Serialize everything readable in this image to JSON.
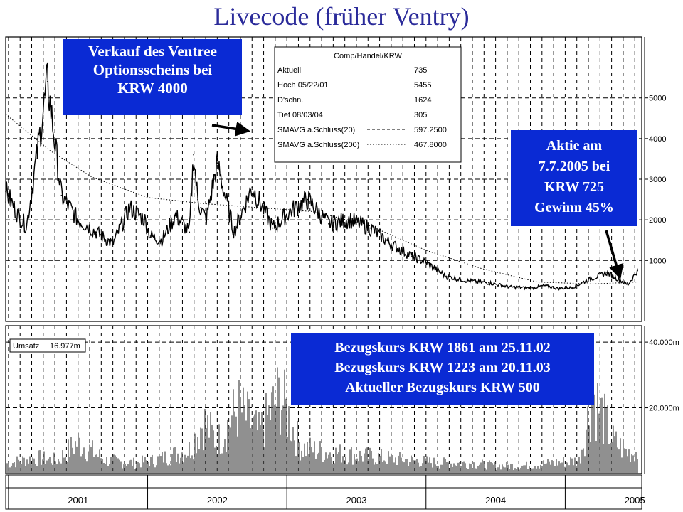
{
  "title": "Livecode (früher Ventry)",
  "info_box": {
    "header": "Comp/Handel/KRW",
    "rows": [
      {
        "label": "Aktuell",
        "value": "735"
      },
      {
        "label": "Hoch  05/22/01",
        "value": "5455"
      },
      {
        "label": "D'schn.",
        "value": "1624"
      },
      {
        "label": "Tief  08/03/04",
        "value": "305"
      },
      {
        "label": "SMAVG a.Schluss(20)",
        "value": "597.2500"
      },
      {
        "label": "SMAVG a.Schluss(200)",
        "value": "467.8000"
      }
    ]
  },
  "volume_box": {
    "label": "Umsatz",
    "value": "16.977m"
  },
  "callouts": {
    "sale": [
      "Verkauf des Ventree",
      "Optionsscheins bei",
      "KRW 4000"
    ],
    "stock": [
      "Aktie am",
      "7.7.2005 bei",
      "KRW 725",
      "Gewinn 45%"
    ],
    "strike": [
      "Bezugskurs KRW 1861 am 25.11.02",
      "Bezugskurs KRW 1223 am 20.11.03",
      "Aktueller Bezugskurs KRW 500"
    ]
  },
  "colors": {
    "title": "#2b2b9a",
    "callout_bg": "#0a2ad4",
    "price_line": "#000000",
    "grid": "#000000"
  },
  "chart_data": [
    {
      "type": "line",
      "series": [
        {
          "x": [
            2000.98,
            2001.08,
            2001.13,
            2001.2,
            2001.28,
            2001.38,
            2001.5,
            2001.63,
            2001.75,
            2001.87,
            2001.98,
            2002.02,
            2002.1,
            2002.2,
            2002.3,
            2002.33,
            2002.36,
            2002.38,
            2002.42,
            2002.5,
            2002.62,
            2002.75,
            2002.9,
            2003.02,
            2003.15,
            2003.3,
            2003.45,
            2003.6,
            2003.75,
            2003.9,
            2004.0,
            2004.15,
            2004.3,
            2004.45,
            2004.6,
            2004.75,
            2004.85,
            2004.95,
            2005.05,
            2005.15,
            2005.3,
            2005.45,
            2005.52
          ],
          "y": [
            2700,
            2050,
            1850,
            3500,
            5400,
            2600,
            2000,
            1700,
            1400,
            2300,
            2000,
            1600,
            1500,
            2100,
            1700,
            3600,
            2500,
            2300,
            2000,
            3400,
            1700,
            2800,
            1800,
            2200,
            2500,
            1900,
            2000,
            1800,
            1400,
            1100,
            950,
            600,
            500,
            450,
            350,
            320,
            380,
            310,
            330,
            500,
            700,
            400,
            750
          ]
        },
        {
          "x": [
            2000.98,
            2001.3,
            2001.6,
            2002.0,
            2002.4,
            2002.8,
            2003.2,
            2003.6,
            2004.0,
            2004.4,
            2004.8,
            2005.2,
            2005.52
          ],
          "y": [
            4600,
            3700,
            3050,
            2550,
            2400,
            2300,
            2200,
            1850,
            1250,
            800,
            470,
            420,
            470
          ]
        }
      ],
      "x_ticks": [
        "2001",
        "2002",
        "2003",
        "2004",
        "2005"
      ],
      "y_ticks": [
        1000,
        2000,
        3000,
        4000,
        5000
      ],
      "ylim": [
        -500,
        6500
      ],
      "grid": true
    },
    {
      "type": "bar",
      "y_tick_labels": [
        "20.000m",
        "40.000m"
      ],
      "y_ticks": [
        20,
        40
      ],
      "ylim": [
        0,
        45
      ],
      "x": [
        2001.0,
        2001.2,
        2001.35,
        2001.5,
        2001.7,
        2001.9,
        2002.05,
        2002.3,
        2002.4,
        2002.5,
        2002.65,
        2002.8,
        2002.95,
        2003.1,
        2003.3,
        2003.5,
        2003.7,
        2003.9,
        2004.1,
        2004.3,
        2004.5,
        2004.7,
        2004.9,
        2005.1,
        2005.2,
        2005.35,
        2005.45
      ],
      "values": [
        4,
        6,
        5,
        12,
        5,
        4,
        5,
        9,
        20,
        12,
        25,
        15,
        30,
        10,
        8,
        7,
        6,
        5,
        4,
        4,
        3,
        3,
        4,
        5,
        30,
        12,
        8
      ]
    }
  ]
}
